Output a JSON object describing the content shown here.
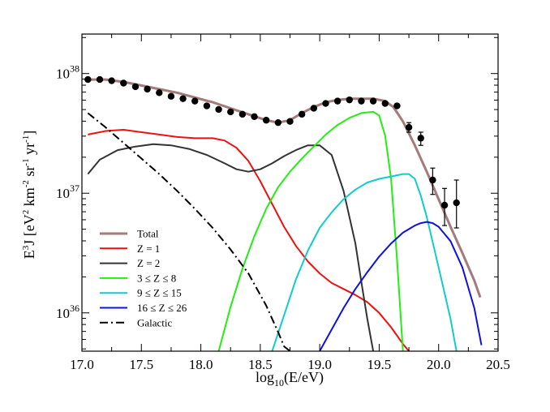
{
  "chart_data": {
    "type": "line",
    "title": "",
    "xlabel_prefix": "log",
    "xlabel_sub": "10",
    "xlabel_suffix": "(E/eV)",
    "ylabel_parts": {
      "e": "E",
      "e_sup": "3",
      "j_open": "J [eV",
      "ev_sup": "2",
      "km": " km",
      "km_sup": "-2",
      "sr": " sr",
      "sr_sup": "-1",
      "yr": " yr",
      "yr_sup": "-1",
      "close": "]"
    },
    "xlim": [
      17.0,
      20.5
    ],
    "ylog_lim": [
      35.68,
      38.33
    ],
    "xticks": [
      "17.0",
      "17.5",
      "18.0",
      "18.5",
      "19.0",
      "19.5",
      "20.0",
      "20.5"
    ],
    "yticks": [
      {
        "base": "10",
        "exp": "36",
        "value": 36
      },
      {
        "base": "10",
        "exp": "37",
        "value": 37
      },
      {
        "base": "10",
        "exp": "38",
        "value": 38
      }
    ],
    "series": [
      {
        "name": "Total",
        "color": "#a47a7a",
        "width": 3,
        "dash": "",
        "x": [
          17.05,
          17.2,
          17.35,
          17.5,
          17.65,
          17.8,
          17.95,
          18.1,
          18.25,
          18.4,
          18.55,
          18.65,
          18.75,
          18.85,
          18.95,
          19.05,
          19.15,
          19.25,
          19.35,
          19.45,
          19.55,
          19.62,
          19.7,
          19.8,
          19.9,
          20.0,
          20.1,
          20.2,
          20.3,
          20.35
        ],
        "y": [
          37.95,
          37.95,
          37.93,
          37.9,
          37.87,
          37.84,
          37.8,
          37.76,
          37.71,
          37.66,
          37.61,
          37.59,
          37.61,
          37.67,
          37.72,
          37.76,
          37.78,
          37.79,
          37.79,
          37.79,
          37.77,
          37.72,
          37.6,
          37.4,
          37.18,
          36.95,
          36.72,
          36.5,
          36.27,
          36.13
        ]
      },
      {
        "name": "Z = 1",
        "color": "#ee1111",
        "width": 2,
        "dash": "",
        "x": [
          17.05,
          17.2,
          17.35,
          17.5,
          17.65,
          17.8,
          17.95,
          18.1,
          18.2,
          18.3,
          18.4,
          18.5,
          18.6,
          18.7,
          18.8,
          18.9,
          19.0,
          19.1,
          19.2,
          19.3,
          19.4,
          19.5,
          19.6,
          19.7,
          19.75
        ],
        "y": [
          37.49,
          37.52,
          37.53,
          37.51,
          37.49,
          37.47,
          37.46,
          37.46,
          37.44,
          37.38,
          37.27,
          37.1,
          36.91,
          36.72,
          36.56,
          36.43,
          36.33,
          36.25,
          36.2,
          36.15,
          36.09,
          36.0,
          35.88,
          35.74,
          35.68
        ]
      },
      {
        "name": "Z = 2",
        "color": "#333333",
        "width": 2,
        "dash": "",
        "x": [
          17.05,
          17.15,
          17.3,
          17.45,
          17.6,
          17.75,
          17.9,
          18.05,
          18.2,
          18.3,
          18.4,
          18.5,
          18.6,
          18.7,
          18.8,
          18.9,
          19.0,
          19.1,
          19.2,
          19.3,
          19.35,
          19.4,
          19.45
        ],
        "y": [
          37.16,
          37.28,
          37.36,
          37.39,
          37.41,
          37.4,
          37.37,
          37.32,
          37.25,
          37.2,
          37.18,
          37.2,
          37.25,
          37.31,
          37.36,
          37.4,
          37.4,
          37.32,
          37.02,
          36.58,
          36.26,
          35.95,
          35.68
        ]
      },
      {
        "name": "3 ≤ Z ≤ 8",
        "color": "#22ee11",
        "width": 2,
        "dash": "",
        "x": [
          18.15,
          18.25,
          18.35,
          18.45,
          18.55,
          18.65,
          18.75,
          18.85,
          18.95,
          19.05,
          19.15,
          19.25,
          19.35,
          19.45,
          19.5,
          19.55,
          19.6,
          19.65,
          19.7
        ],
        "y": [
          35.68,
          36.05,
          36.37,
          36.64,
          36.87,
          37.05,
          37.18,
          37.29,
          37.39,
          37.49,
          37.57,
          37.63,
          37.67,
          37.68,
          37.65,
          37.48,
          37.12,
          36.45,
          35.68
        ]
      },
      {
        "name": "9 ≤ Z ≤ 15",
        "color": "#11cccc",
        "width": 2,
        "dash": "",
        "x": [
          18.6,
          18.7,
          18.8,
          18.9,
          19.0,
          19.1,
          19.2,
          19.3,
          19.4,
          19.5,
          19.6,
          19.7,
          19.75,
          19.8,
          19.85,
          19.9,
          20.0,
          20.1,
          20.15
        ],
        "y": [
          35.68,
          35.98,
          36.28,
          36.52,
          36.71,
          36.84,
          36.95,
          37.03,
          37.09,
          37.12,
          37.14,
          37.16,
          37.16,
          37.12,
          36.98,
          36.8,
          36.38,
          35.95,
          35.68
        ]
      },
      {
        "name": "16 ≤ Z ≤ 26",
        "color": "#1111dd",
        "width": 2,
        "dash": "",
        "x": [
          19.0,
          19.1,
          19.2,
          19.3,
          19.4,
          19.5,
          19.6,
          19.7,
          19.8,
          19.85,
          19.9,
          19.95,
          20.0,
          20.1,
          20.2,
          20.3,
          20.36
        ],
        "y": [
          35.68,
          35.86,
          36.04,
          36.2,
          36.34,
          36.47,
          36.58,
          36.67,
          36.73,
          36.75,
          36.76,
          36.75,
          36.72,
          36.6,
          36.38,
          36.04,
          35.73
        ]
      },
      {
        "name": "Galactic",
        "color": "#000000",
        "width": 2,
        "dash": "10,4,2,4",
        "x": [
          17.05,
          17.2,
          17.35,
          17.5,
          17.65,
          17.8,
          17.95,
          18.1,
          18.25,
          18.4,
          18.55,
          18.65,
          18.7,
          18.75
        ],
        "y": [
          37.67,
          37.55,
          37.42,
          37.29,
          37.16,
          37.02,
          36.87,
          36.71,
          36.53,
          36.33,
          36.06,
          35.84,
          35.72,
          35.68
        ]
      }
    ],
    "data_points": {
      "name": "Data",
      "color": "#000000",
      "x": [
        17.05,
        17.15,
        17.25,
        17.35,
        17.45,
        17.55,
        17.65,
        17.75,
        17.85,
        17.95,
        18.05,
        18.15,
        18.25,
        18.35,
        18.45,
        18.55,
        18.65,
        18.75,
        18.85,
        18.95,
        19.05,
        19.15,
        19.25,
        19.35,
        19.45,
        19.55,
        19.65,
        19.75,
        19.85,
        19.95,
        20.05,
        20.15
      ],
      "y": [
        37.95,
        37.95,
        37.94,
        37.92,
        37.89,
        37.87,
        37.84,
        37.81,
        37.79,
        37.77,
        37.73,
        37.7,
        37.68,
        37.66,
        37.64,
        37.61,
        37.59,
        37.6,
        37.66,
        37.71,
        37.75,
        37.77,
        37.78,
        37.77,
        37.77,
        37.75,
        37.73,
        37.55,
        37.46,
        37.11,
        36.9,
        36.92
      ],
      "err_low": [
        0,
        0,
        0,
        0,
        0,
        0,
        0,
        0,
        0,
        0,
        0,
        0,
        0,
        0,
        0,
        0,
        0,
        0,
        0,
        0,
        0,
        0,
        0,
        0,
        0,
        0,
        0,
        0.04,
        0.06,
        0.12,
        0.17,
        0.21
      ],
      "err_high": [
        0,
        0,
        0,
        0,
        0,
        0,
        0,
        0,
        0,
        0,
        0,
        0,
        0,
        0,
        0,
        0,
        0,
        0,
        0,
        0,
        0,
        0,
        0,
        0,
        0,
        0,
        0,
        0.04,
        0.05,
        0.1,
        0.14,
        0.19
      ]
    },
    "legend": {
      "placement": "lower-left",
      "entries": [
        {
          "label": "Total",
          "color": "#a47a7a",
          "width": 3,
          "dash": ""
        },
        {
          "label": "Z = 1",
          "color": "#ee1111",
          "width": 2,
          "dash": ""
        },
        {
          "label": "Z = 2",
          "color": "#333333",
          "width": 2,
          "dash": ""
        },
        {
          "label": "3 ≤ Z ≤ 8",
          "color": "#22ee11",
          "width": 2,
          "dash": ""
        },
        {
          "label": "9 ≤ Z ≤ 15",
          "color": "#11cccc",
          "width": 2,
          "dash": ""
        },
        {
          "label": "16 ≤ Z ≤ 26",
          "color": "#1111dd",
          "width": 2,
          "dash": ""
        },
        {
          "label": "Galactic",
          "color": "#000000",
          "width": 2,
          "dash": "10,4,2,4"
        }
      ]
    }
  }
}
